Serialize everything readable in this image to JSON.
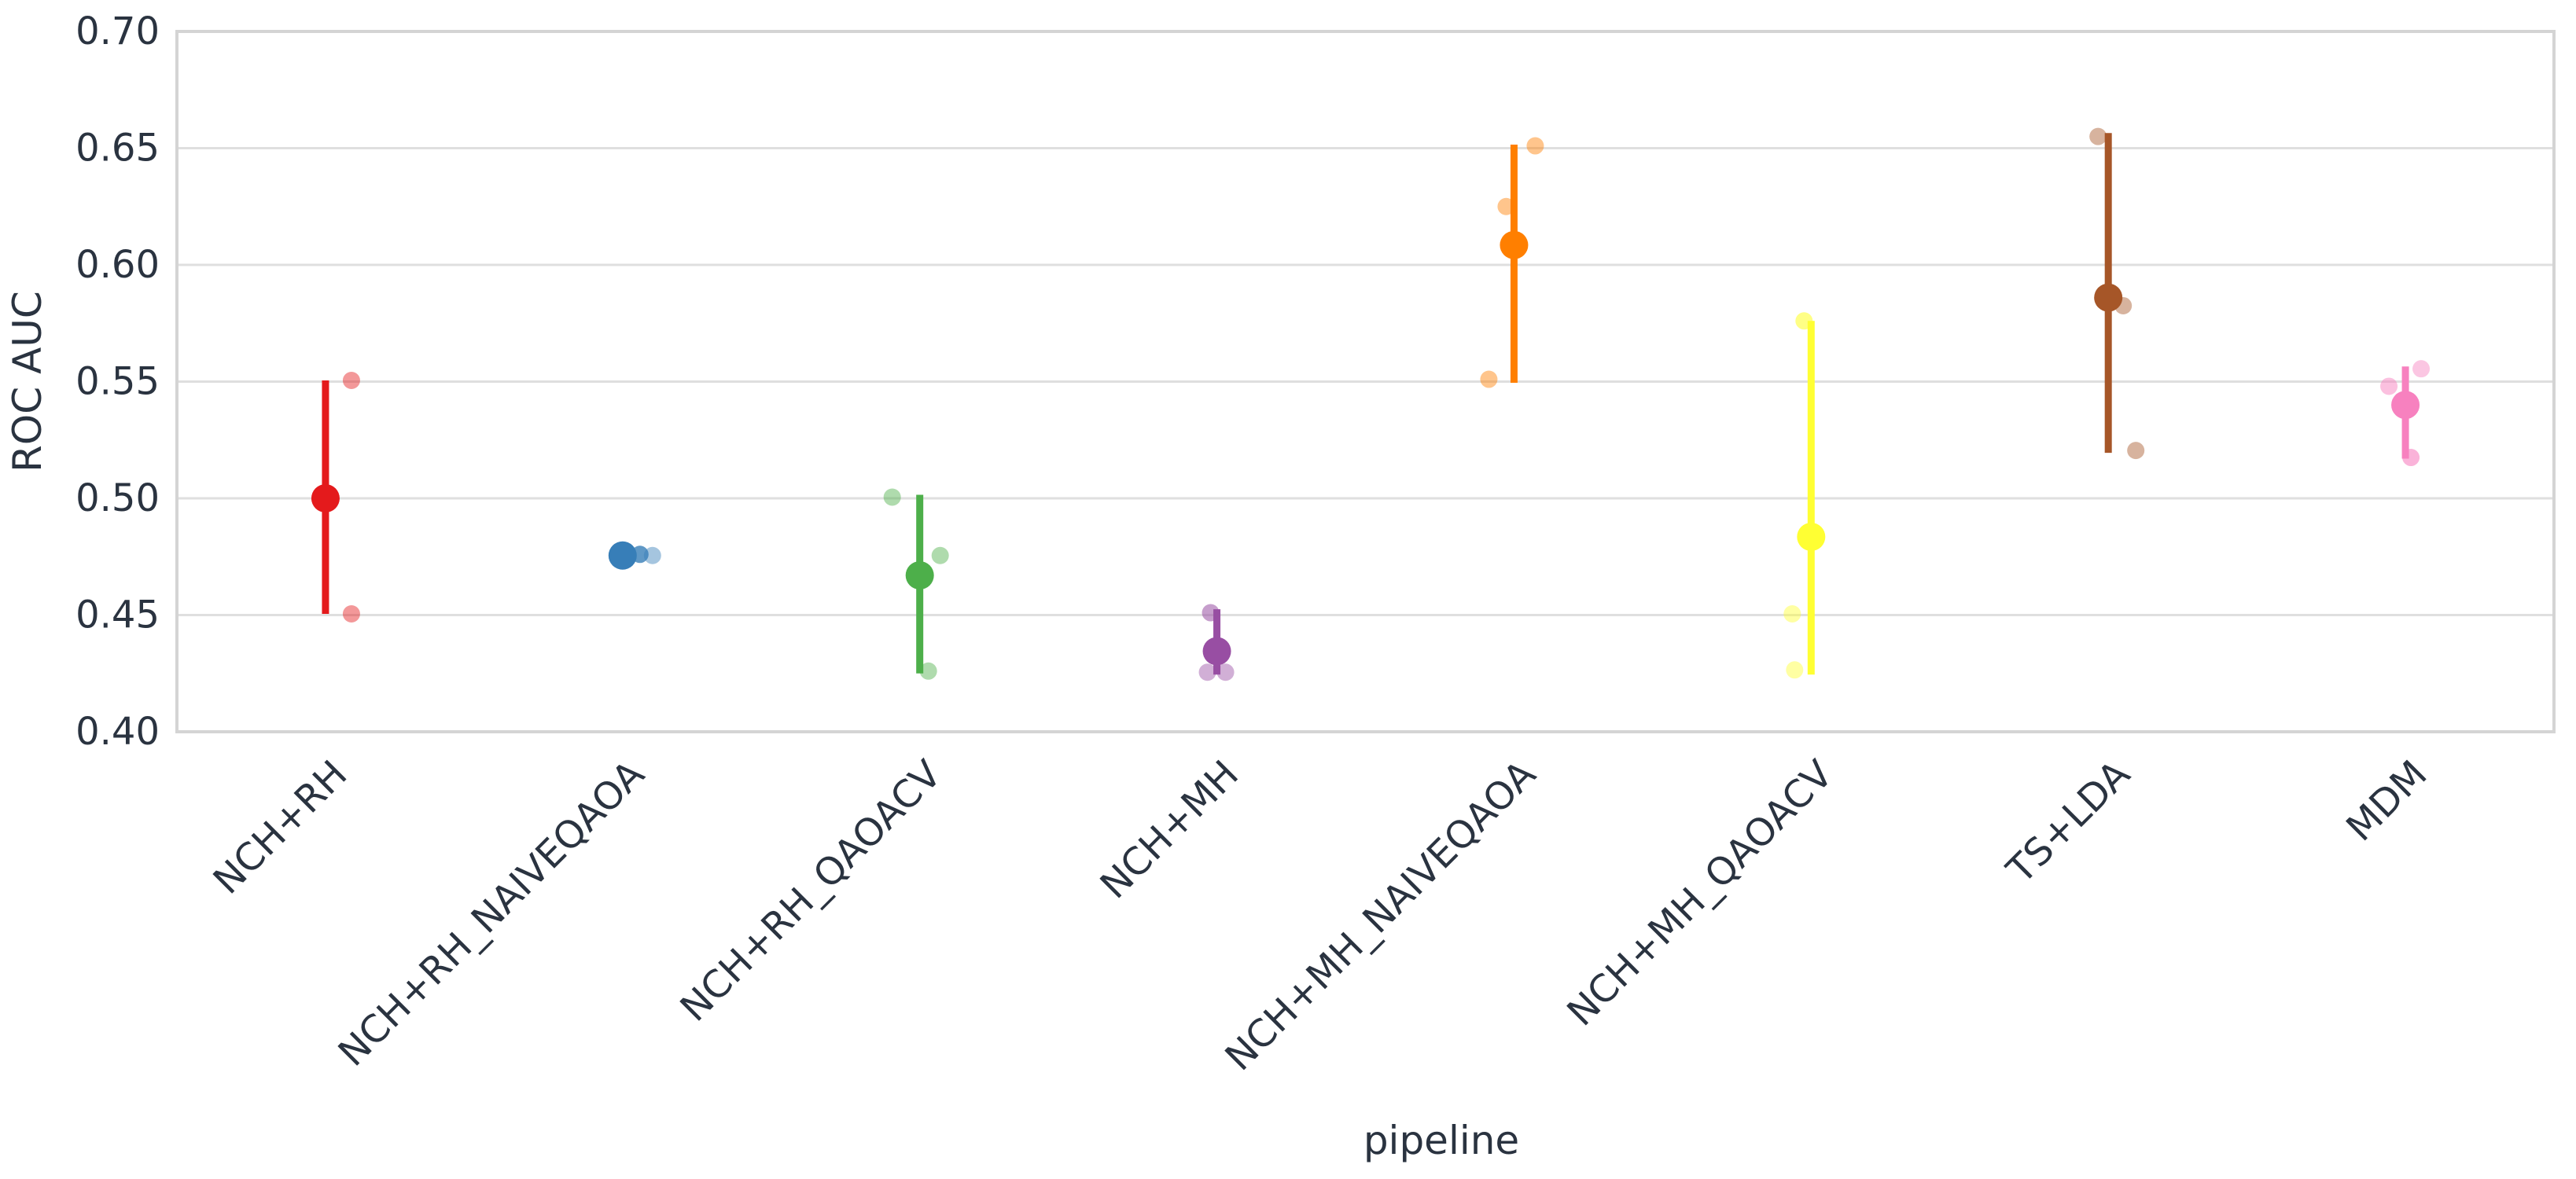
{
  "chart_data": {
    "type": "scatter",
    "subtype": "pointplot-with-ci-and-strip",
    "title": "",
    "xlabel": "pipeline",
    "ylabel": "ROC AUC",
    "ylim": [
      0.4,
      0.7
    ],
    "yticks": [
      0.4,
      0.45,
      0.5,
      0.55,
      0.6,
      0.65,
      0.7
    ],
    "ytick_labels": [
      "0.40",
      "0.45",
      "0.50",
      "0.55",
      "0.60",
      "0.65",
      "0.70"
    ],
    "grid": "horizontal",
    "legend": "none",
    "categories": [
      "NCH+RH",
      "NCH+RH_NAIVEQAOA",
      "NCH+RH_QAOACV",
      "NCH+MH",
      "NCH+MH_NAIVEQAOA",
      "NCH+MH_QAOACV",
      "TS+LDA",
      "MDM"
    ],
    "series": [
      {
        "pipeline": "NCH+RH",
        "color": "#e41a1c",
        "mean": 0.5,
        "ci": [
          0.4505,
          0.5505
        ],
        "points": [
          {
            "v": 0.5505,
            "dx": 33
          },
          {
            "v": 0.4505,
            "dx": 33
          }
        ]
      },
      {
        "pipeline": "NCH+RH_NAIVEQAOA",
        "color": "#377eb8",
        "mean": 0.4755,
        "ci": [
          0.4755,
          0.4755
        ],
        "points": [
          {
            "v": 0.476,
            "dx": 22,
            "a": 0.8
          },
          {
            "v": 0.4755,
            "dx": 38
          }
        ]
      },
      {
        "pipeline": "NCH+RH_QAOACV",
        "color": "#4daf4a",
        "mean": 0.467,
        "ci": [
          0.425,
          0.5015
        ],
        "points": [
          {
            "v": 0.5005,
            "dx": -35
          },
          {
            "v": 0.4755,
            "dx": 26
          },
          {
            "v": 0.426,
            "dx": 11
          }
        ]
      },
      {
        "pipeline": "NCH+MH",
        "color": "#984ea3",
        "mean": 0.4345,
        "ci": [
          0.4245,
          0.4525
        ],
        "points": [
          {
            "v": 0.451,
            "dx": -8,
            "a": 0.55
          },
          {
            "v": 0.4255,
            "dx": -12
          },
          {
            "v": 0.4255,
            "dx": 11
          }
        ]
      },
      {
        "pipeline": "NCH+MH_NAIVEQAOA",
        "color": "#ff7f00",
        "mean": 0.6085,
        "ci": [
          0.5495,
          0.6515
        ],
        "points": [
          {
            "v": 0.651,
            "dx": 27
          },
          {
            "v": 0.625,
            "dx": -10
          },
          {
            "v": 0.551,
            "dx": -32
          }
        ]
      },
      {
        "pipeline": "NCH+MH_QAOACV",
        "color": "#ffff33",
        "mean": 0.4835,
        "ci": [
          0.4245,
          0.576
        ],
        "points": [
          {
            "v": 0.576,
            "dx": -9,
            "a": 0.6
          },
          {
            "v": 0.4505,
            "dx": -24
          },
          {
            "v": 0.4265,
            "dx": -21
          }
        ]
      },
      {
        "pipeline": "TS+LDA",
        "color": "#a65628",
        "mean": 0.586,
        "ci": [
          0.5195,
          0.6565
        ],
        "points": [
          {
            "v": 0.655,
            "dx": -13
          },
          {
            "v": 0.5825,
            "dx": 19
          },
          {
            "v": 0.5205,
            "dx": 35
          }
        ]
      },
      {
        "pipeline": "MDM",
        "color": "#f781bf",
        "mean": 0.54,
        "ci": [
          0.517,
          0.5565
        ],
        "points": [
          {
            "v": 0.5555,
            "dx": 20
          },
          {
            "v": 0.548,
            "dx": -21,
            "a": 0.5
          },
          {
            "v": 0.5175,
            "dx": 7,
            "a": 0.6
          }
        ]
      }
    ],
    "style": {
      "grid_color": "#dfdfdf",
      "border_color": "#d4d4d4",
      "text_color": "#2a3340",
      "background": "#ffffff",
      "strip_alpha": 0.45
    }
  }
}
